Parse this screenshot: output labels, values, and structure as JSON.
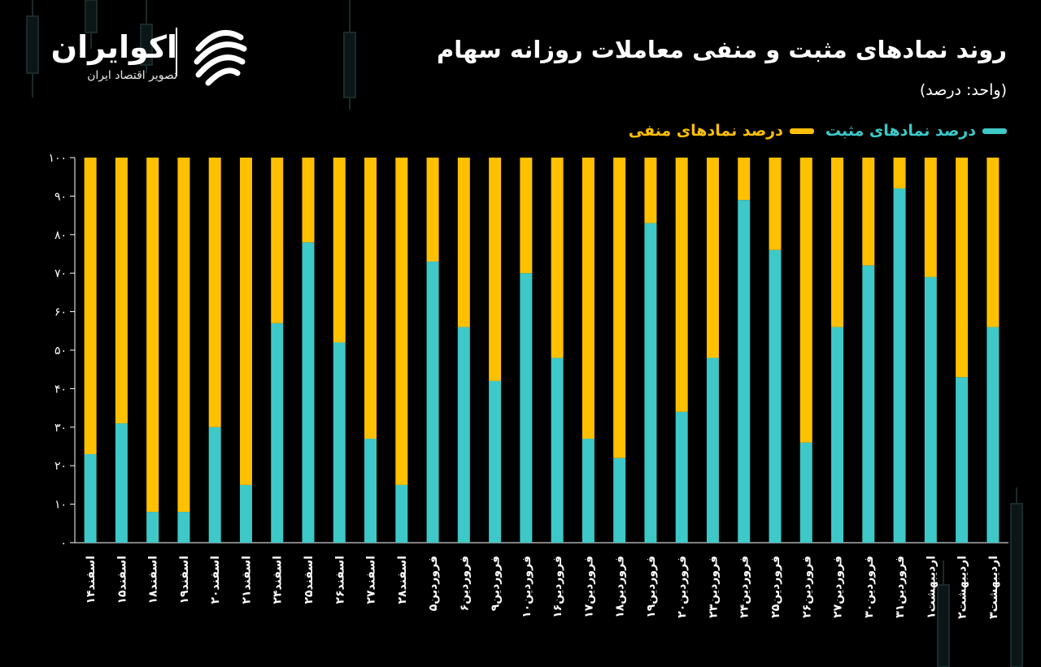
{
  "header": {
    "title": "روند نمادهای مثبت و منفی معاملات روزانه سهام",
    "unit": "(واحد: درصد)"
  },
  "logo": {
    "name": "اکوایران",
    "tagline": "تصویر اقتصاد ایران"
  },
  "colors": {
    "positive": "#3ec8c8",
    "negative": "#ffc000",
    "background": "#000000",
    "text": "#ffffff"
  },
  "chart_data": {
    "type": "bar",
    "stacked": true,
    "title": "روند نمادهای مثبت و منفی معاملات روزانه سهام",
    "ylabel": "",
    "xlabel": "",
    "ylim": [
      0,
      100
    ],
    "yticks": [
      0,
      10,
      20,
      30,
      40,
      50,
      60,
      70,
      80,
      90,
      100
    ],
    "ytick_labels": [
      "۰",
      "۱۰",
      "۲۰",
      "۳۰",
      "۴۰",
      "۵۰",
      "۶۰",
      "۷۰",
      "۸۰",
      "۹۰",
      "۱۰۰"
    ],
    "legend_position": "top-right",
    "categories": [
      "اسفند۱۴",
      "اسفند۱۵",
      "اسفند۱۸",
      "اسفند۱۹",
      "اسفند۲۰",
      "اسفند۲۱",
      "اسفند۲۴",
      "اسفند۲۵",
      "اسفند۲۶",
      "اسفند۲۷",
      "اسفند۲۸",
      "فروردین۵",
      "فروردین۶",
      "فروردین۹",
      "فروردین۱۰",
      "فروردین۱۶",
      "فروردین۱۷",
      "فروردین۱۸",
      "فروردین۱۹",
      "فروردین۲۰",
      "فروردین۲۳",
      "فروردین۲۴",
      "فروردین۲۵",
      "فروردین۲۶",
      "فروردین۲۷",
      "فروردین۳۰",
      "فروردین۳۱",
      "اردیبهشت۱",
      "اردیبهشت۲",
      "اردیبهشت۳"
    ],
    "series": [
      {
        "name": "درصد نمادهای مثبت",
        "color": "#3ec8c8",
        "values": [
          23,
          31,
          8,
          8,
          30,
          15,
          57,
          78,
          52,
          27,
          15,
          73,
          56,
          42,
          70,
          48,
          27,
          22,
          83,
          34,
          48,
          89,
          76,
          26,
          56,
          72,
          92,
          69,
          43,
          56
        ]
      },
      {
        "name": "درصد نمادهای منفی",
        "color": "#ffc000",
        "values": [
          77,
          69,
          92,
          92,
          70,
          85,
          43,
          22,
          48,
          73,
          85,
          27,
          44,
          58,
          30,
          52,
          73,
          78,
          17,
          66,
          52,
          11,
          24,
          74,
          44,
          28,
          8,
          31,
          57,
          44
        ]
      }
    ]
  }
}
